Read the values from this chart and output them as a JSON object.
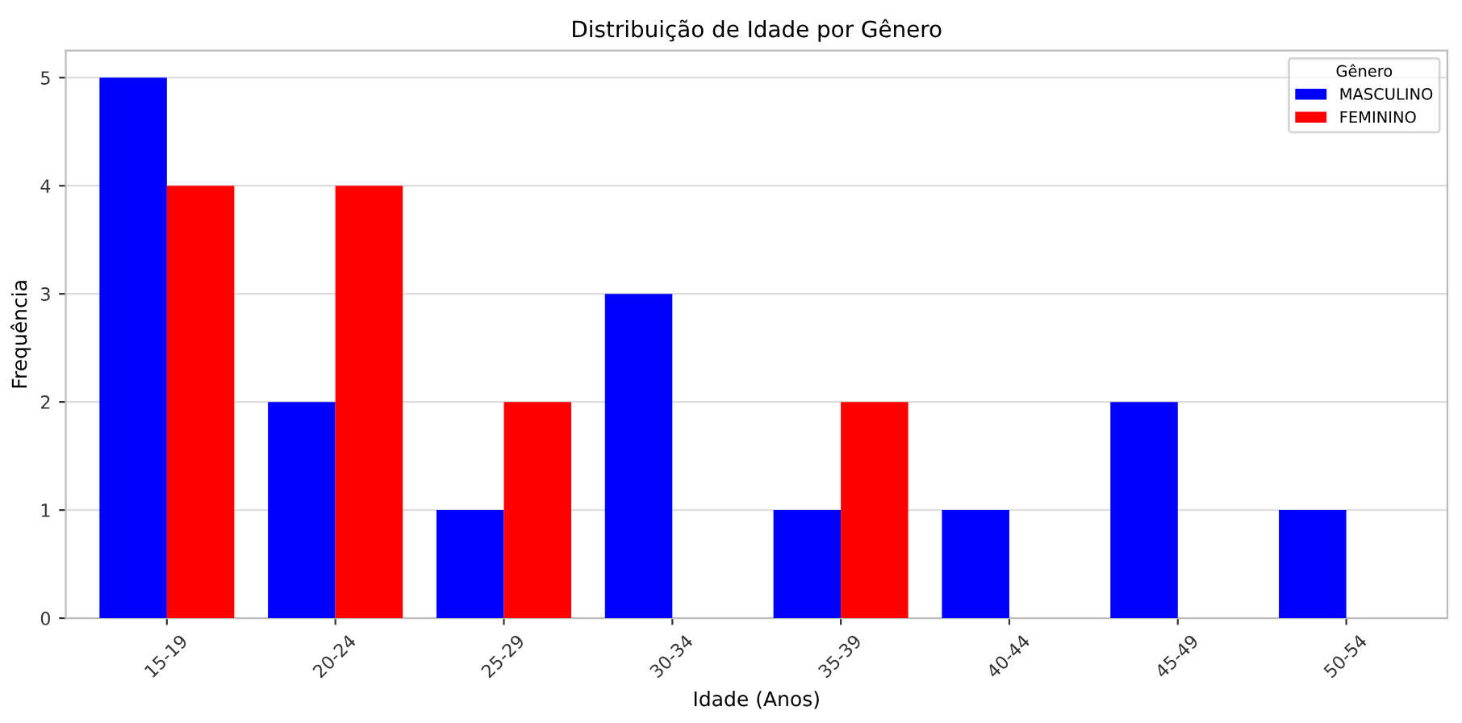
{
  "chart_data": {
    "type": "bar",
    "title": "Distribuição de Idade por Gênero",
    "xlabel": "Idade (Anos)",
    "ylabel": "Frequência",
    "legend_title": "Gênero",
    "categories": [
      "15-19",
      "20-24",
      "25-29",
      "30-34",
      "35-39",
      "40-44",
      "45-49",
      "50-54"
    ],
    "series": [
      {
        "name": "MASCULINO",
        "color": "#0000ff",
        "values": [
          5,
          2,
          1,
          3,
          1,
          1,
          2,
          1
        ]
      },
      {
        "name": "FEMININO",
        "color": "#ff0000",
        "values": [
          4,
          4,
          2,
          0,
          2,
          0,
          0,
          0
        ]
      }
    ],
    "ylim": [
      0,
      5.25
    ],
    "yticks": [
      0,
      1,
      2,
      3,
      4,
      5
    ],
    "grid": "y",
    "legend": "top right"
  }
}
